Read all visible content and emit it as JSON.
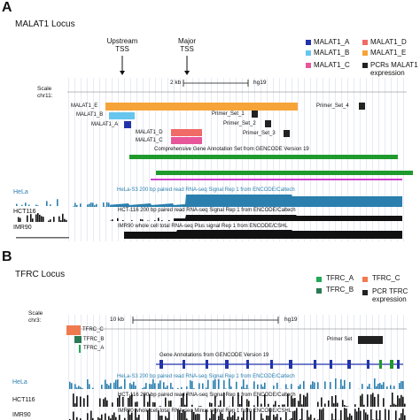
{
  "panelA": {
    "letter": "A",
    "title": "MALAT1 Locus",
    "tss": {
      "upstream_line1": "Upstream",
      "upstream_line2": "TSS",
      "major_line1": "Major",
      "major_line2": "TSS"
    },
    "legend": [
      {
        "label": "MALAT1_A",
        "color": "#2233aa"
      },
      {
        "label": "MALAT1_B",
        "color": "#66c6ee"
      },
      {
        "label": "MALAT1_C",
        "color": "#e8569a"
      },
      {
        "label": "MALAT1_D",
        "color": "#f06a66"
      },
      {
        "label": "MALAT1_E",
        "color": "#f6a43a"
      },
      {
        "label": "PCRs MALAT1 expression",
        "color": "#222222"
      }
    ],
    "scale_label": "Scale",
    "chrom_label": "chr11:",
    "scale_bar": "2 kb",
    "assembly": "hg19",
    "isoform_labels": {
      "e": "MALAT1_E",
      "b": "MALAT1_B",
      "a": "MALAT1_A",
      "d": "MALAT1_D",
      "c": "MALAT1_C"
    },
    "primers": [
      "Primer_Set_1",
      "Primer_Set_2",
      "Primer_Set_3",
      "Primer_Set_4"
    ],
    "gencode_label": "Comprehensive Gene Annotation Set from GENCODE Version 19",
    "tracks": [
      {
        "side": "HeLa",
        "desc": "HeLa-S3 200 bp paired read RNA-seq Signal Rep 1 from ENCODE/Caltech",
        "color": "#2a7fae"
      },
      {
        "side": "HCT116",
        "desc": "HCT-116 200 bp paired read RNA-seq Signal Rep 1 from ENCODE/Caltech",
        "color": "#111111"
      },
      {
        "side": "IMR90",
        "desc": "IMR90 whole cell total RNA-seq Plus signal Rep 1 from ENCODE/CSHL",
        "color": "#111111"
      }
    ]
  },
  "panelB": {
    "letter": "B",
    "title": "TFRC Locus",
    "legend": [
      {
        "label": "TFRC_A",
        "color": "#22aa55"
      },
      {
        "label": "TFRC_B",
        "color": "#2a7a55"
      },
      {
        "label": "TFRC_C",
        "color": "#f07a50"
      },
      {
        "label": "PCR TFRC expression",
        "color": "#222222"
      }
    ],
    "scale_label": "Scale",
    "chrom_label": "chr3:",
    "scale_bar": "10 kb",
    "assembly": "hg19",
    "isoform_labels": {
      "c": "TFRC_C",
      "b": "TFRC_B",
      "a": "TFRC_A"
    },
    "primer": "Primer Set",
    "gencode_label": "Gene Annotations from GENCODE Version 19",
    "tracks": [
      {
        "side": "HeLa",
        "desc": "HeLa-S3 200 bp paired read RNA-seq Signal Rep 1 from ENCODE/Caltech",
        "color": "#2a7fae"
      },
      {
        "side": "HCT116",
        "desc": "HCT-116 200 bp paired read RNA-seq Signal Rep 1 from ENCODE/Caltech",
        "color": "#111111"
      },
      {
        "side": "IMR90",
        "desc": "IMR90 whole cell total RNA-seq Minus signal Rep 1 from ENCODE/CSHL",
        "color": "#111111"
      }
    ]
  }
}
